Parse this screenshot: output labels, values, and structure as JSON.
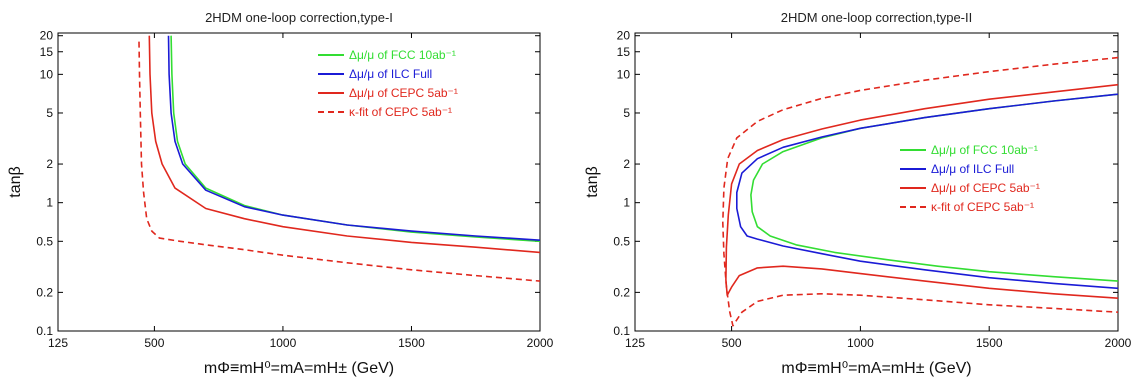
{
  "chart_data": [
    {
      "type": "line",
      "title": "2HDM one-loop correction,type-I",
      "xlabel": "mΦ≡mH⁰=mA=mH± (GeV)",
      "ylabel": "tanβ",
      "xscale": "linear",
      "yscale": "log",
      "xlim": [
        125,
        2000
      ],
      "ylim": [
        0.1,
        21
      ],
      "xticks": [
        "125",
        "500",
        "1000",
        "1500",
        "2000"
      ],
      "yticks": [
        "0.1",
        "0.2",
        "0.5",
        "1",
        "2",
        "5",
        "10",
        "15",
        "20"
      ],
      "legend_position": "top-right",
      "series": [
        {
          "name": "Δμ/μ of FCC 10ab⁻¹",
          "color": "#33dd33",
          "dash": false,
          "x": [
            565,
            568,
            575,
            590,
            620,
            700,
            850,
            1000,
            1250,
            1500,
            1750,
            2000
          ],
          "y": [
            20,
            10,
            5,
            3,
            2,
            1.3,
            0.95,
            0.8,
            0.67,
            0.59,
            0.54,
            0.5
          ]
        },
        {
          "name": "Δμ/μ of ILC Full",
          "color": "#1b1bd6",
          "dash": false,
          "x": [
            555,
            557,
            565,
            580,
            610,
            700,
            850,
            1000,
            1250,
            1500,
            1750,
            2000
          ],
          "y": [
            20,
            10,
            5,
            3,
            2,
            1.25,
            0.93,
            0.8,
            0.67,
            0.6,
            0.55,
            0.51
          ]
        },
        {
          "name": "Δμ/μ of CEPC 5ab⁻¹",
          "color": "#e0281e",
          "dash": false,
          "x": [
            480,
            483,
            490,
            505,
            530,
            580,
            700,
            850,
            1000,
            1250,
            1500,
            1750,
            2000
          ],
          "y": [
            20,
            10,
            5,
            3,
            2,
            1.3,
            0.9,
            0.75,
            0.65,
            0.55,
            0.49,
            0.45,
            0.41
          ]
        },
        {
          "name": "κ-fit of CEPC 5ab⁻¹",
          "color": "#e0281e",
          "dash": true,
          "x": [
            440,
            442,
            445,
            450,
            458,
            470,
            490,
            520,
            600,
            700,
            850,
            1000,
            1250,
            1500,
            1750,
            2000
          ],
          "y": [
            18,
            10,
            5,
            2,
            1.2,
            0.75,
            0.6,
            0.53,
            0.5,
            0.47,
            0.43,
            0.39,
            0.34,
            0.3,
            0.27,
            0.245
          ]
        }
      ]
    },
    {
      "type": "line",
      "title": "2HDM one-loop correction,type-II",
      "xlabel": "mΦ≡mH⁰=mA=mH± (GeV)",
      "ylabel": "tanβ",
      "xscale": "linear",
      "yscale": "log",
      "xlim": [
        125,
        2000
      ],
      "ylim": [
        0.1,
        21
      ],
      "xticks": [
        "125",
        "500",
        "1000",
        "1500",
        "2000"
      ],
      "yticks": [
        "0.1",
        "0.2",
        "0.5",
        "1",
        "2",
        "5",
        "10",
        "15",
        "20"
      ],
      "legend_position": "center-right",
      "series": [
        {
          "name": "Δμ/μ of FCC 10ab⁻¹",
          "color": "#33dd33",
          "dash": false,
          "x": [
            2000,
            1750,
            1500,
            1250,
            1000,
            850,
            700,
            620,
            585,
            575,
            580,
            600,
            650,
            750,
            900,
            1100,
            1300,
            1500,
            1750,
            2000
          ],
          "y": [
            7,
            6.2,
            5.4,
            4.6,
            3.8,
            3.2,
            2.5,
            2.0,
            1.5,
            1.15,
            0.85,
            0.65,
            0.55,
            0.47,
            0.41,
            0.36,
            0.32,
            0.29,
            0.265,
            0.245
          ]
        },
        {
          "name": "Δμ/μ of ILC Full",
          "color": "#1b1bd6",
          "dash": false,
          "x": [
            2000,
            1750,
            1500,
            1250,
            1000,
            850,
            700,
            600,
            540,
            520,
            520,
            535,
            560,
            600,
            700,
            850,
            1000,
            1250,
            1500,
            1750,
            2000
          ],
          "y": [
            7,
            6.2,
            5.4,
            4.6,
            3.8,
            3.25,
            2.7,
            2.2,
            1.7,
            1.2,
            0.9,
            0.65,
            0.55,
            0.52,
            0.46,
            0.4,
            0.35,
            0.3,
            0.26,
            0.235,
            0.215
          ]
        },
        {
          "name": "Δμ/μ of CEPC 5ab⁻¹",
          "color": "#e0281e",
          "dash": false,
          "x": [
            2000,
            1750,
            1500,
            1250,
            1000,
            850,
            700,
            600,
            530,
            500,
            487,
            480,
            478,
            483,
            500,
            530,
            600,
            700,
            850,
            1000,
            1250,
            1500,
            1750,
            2000
          ],
          "y": [
            8.3,
            7.3,
            6.4,
            5.4,
            4.4,
            3.75,
            3.1,
            2.55,
            2.0,
            1.4,
            0.8,
            0.45,
            0.25,
            0.19,
            0.22,
            0.27,
            0.31,
            0.32,
            0.305,
            0.28,
            0.245,
            0.215,
            0.195,
            0.18
          ]
        },
        {
          "name": "κ-fit of CEPC 5ab⁻¹",
          "color": "#e0281e",
          "dash": true,
          "x": [
            2000,
            1750,
            1500,
            1250,
            1000,
            850,
            700,
            600,
            520,
            485,
            470,
            466,
            470,
            480,
            493,
            505,
            540,
            600,
            700,
            850,
            1000,
            1250,
            1500,
            1750,
            2000
          ],
          "y": [
            13.5,
            12,
            10.5,
            9,
            7.5,
            6.5,
            5.3,
            4.3,
            3.2,
            2.2,
            1.3,
            0.7,
            0.4,
            0.22,
            0.14,
            0.11,
            0.14,
            0.17,
            0.19,
            0.195,
            0.19,
            0.175,
            0.16,
            0.15,
            0.14
          ]
        }
      ]
    }
  ]
}
